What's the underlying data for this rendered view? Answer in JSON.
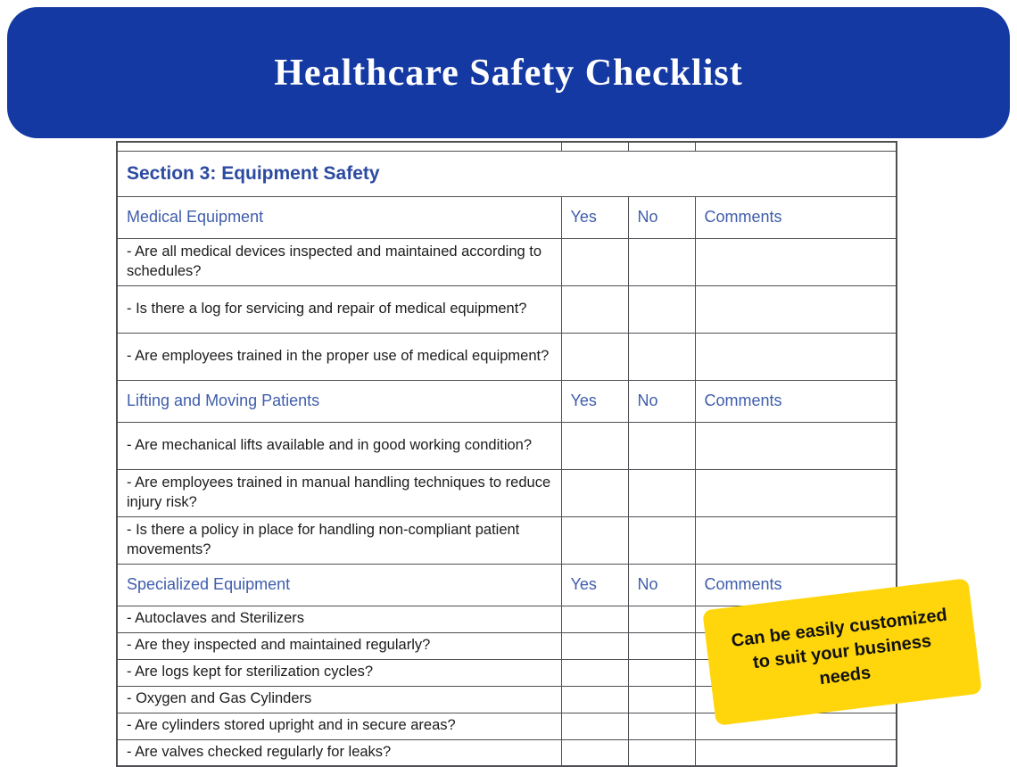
{
  "banner": {
    "title": "Healthcare Safety Checklist",
    "bg_color": "#1539a3",
    "text_color": "#ffffff"
  },
  "table": {
    "section_title": "Section 3: Equipment Safety",
    "columns": {
      "yes": "Yes",
      "no": "No",
      "comments": "Comments"
    },
    "groups": [
      {
        "header": "Medical Equipment",
        "rows": [
          {
            "text": "- Are all medical devices inspected and maintained according to schedules?",
            "indent": false
          },
          {
            "text": "- Is there a log for servicing and repair of medical equipment?",
            "indent": false
          },
          {
            "text": "- Are employees trained in the proper use of medical equipment?",
            "indent": false
          }
        ]
      },
      {
        "header": "Lifting and Moving Patients",
        "rows": [
          {
            "text": "- Are mechanical lifts available and in good working condition?",
            "indent": false
          },
          {
            "text": "- Are employees trained in manual handling techniques to reduce injury risk?",
            "indent": false
          },
          {
            "text": "- Is there a policy in place for handling non-compliant patient movements?",
            "indent": false
          }
        ]
      },
      {
        "header": "Specialized Equipment",
        "rows": [
          {
            "text": "- Autoclaves and Sterilizers",
            "indent": false
          },
          {
            "text": "- Are they inspected and maintained regularly?",
            "indent": true
          },
          {
            "text": "- Are logs kept for sterilization cycles?",
            "indent": true
          },
          {
            "text": "- Oxygen and Gas Cylinders",
            "indent": false
          },
          {
            "text": "- Are cylinders stored upright and in secure areas?",
            "indent": true
          },
          {
            "text": "- Are valves checked regularly for leaks?",
            "indent": true
          }
        ]
      }
    ]
  },
  "note": {
    "bg_color": "#ffd60b",
    "text": "Can be easily customized to suit your business needs",
    "lines": [
      "Can be easily customized",
      "to suit your business",
      "needs"
    ]
  }
}
